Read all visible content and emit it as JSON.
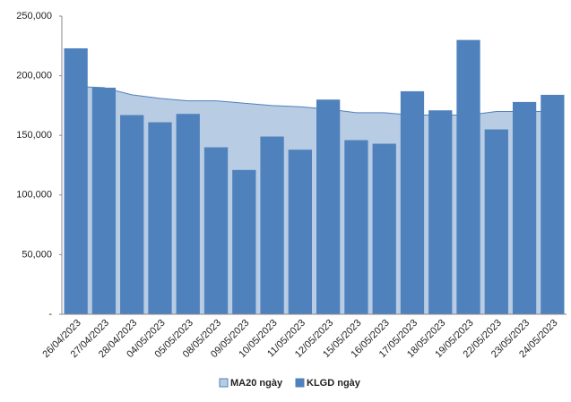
{
  "chart_data": {
    "type": "bar",
    "categories": [
      "26/04/2023",
      "27/04/2023",
      "28/04/2023",
      "04/05/2023",
      "05/05/2023",
      "08/05/2023",
      "09/05/2023",
      "10/05/2023",
      "11/05/2023",
      "12/05/2023",
      "15/05/2023",
      "16/05/2023",
      "17/05/2023",
      "18/05/2023",
      "19/05/2023",
      "22/05/2023",
      "23/05/2023",
      "24/05/2023"
    ],
    "series": [
      {
        "name": "MA20 ngày",
        "type": "area",
        "color": "#b8cce4",
        "line_color": "#4f81bd",
        "values": [
          191000,
          190000,
          184000,
          181000,
          179000,
          179000,
          177000,
          175000,
          174000,
          172000,
          169000,
          169000,
          167000,
          167000,
          167000,
          170000,
          170000,
          170000
        ]
      },
      {
        "name": "KLGD ngày",
        "type": "bar",
        "color": "#4f81bd",
        "values": [
          223000,
          190000,
          167000,
          161000,
          168000,
          140000,
          121000,
          149000,
          138000,
          180000,
          146000,
          143000,
          187000,
          171000,
          230000,
          155000,
          178000,
          184000
        ]
      }
    ],
    "ylim": [
      0,
      250000
    ],
    "yticks": [
      {
        "value": 0,
        "label": "-"
      },
      {
        "value": 50000,
        "label": "50,000"
      },
      {
        "value": 100000,
        "label": "100,000"
      },
      {
        "value": 150000,
        "label": "150,000"
      },
      {
        "value": 200000,
        "label": "200,000"
      },
      {
        "value": 250000,
        "label": "250,000"
      }
    ],
    "legend": "bottom"
  }
}
